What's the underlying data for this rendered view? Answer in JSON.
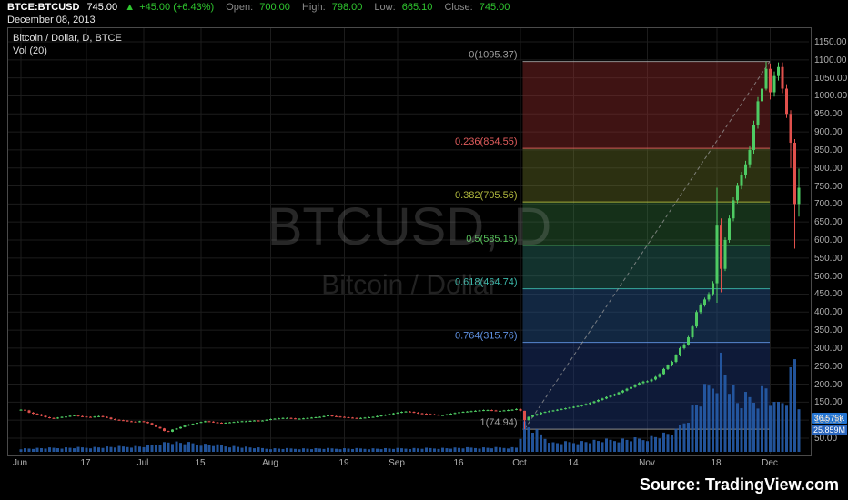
{
  "header": {
    "symbol": "BTCE:BTCUSD",
    "last_price": "745.00",
    "arrow": "▲",
    "change": "+45.00 (+6.43%)",
    "open_label": "Open:",
    "open_value": "700.00",
    "high_label": "High:",
    "high_value": "798.00",
    "low_label": "Low:",
    "low_value": "665.10",
    "close_label": "Close:",
    "close_value": "745.00",
    "date": "December 08, 2013"
  },
  "chart": {
    "legend_title": "Bitcoin / Dollar, D, BTCE",
    "legend_indicator": "Vol (20)",
    "watermark_title": "BTCUSD, D",
    "watermark_subtitle": "Bitcoin / Dollar"
  },
  "price_axis": {
    "ticks": [
      1150,
      1100,
      1050,
      1000,
      950,
      900,
      850,
      800,
      750,
      700,
      650,
      600,
      550,
      500,
      450,
      400,
      350,
      300,
      250,
      200,
      150,
      100,
      50
    ],
    "badges": [
      {
        "text": "36.575K",
        "color": "#2273d0"
      },
      {
        "text": "25.859M",
        "color": "#2b66bd"
      }
    ]
  },
  "time_axis": {
    "ticks": [
      {
        "label": "Jun",
        "index": 0
      },
      {
        "label": "17",
        "index": 16
      },
      {
        "label": "Jul",
        "index": 30
      },
      {
        "label": "15",
        "index": 44
      },
      {
        "label": "Aug",
        "index": 61
      },
      {
        "label": "19",
        "index": 79
      },
      {
        "label": "Sep",
        "index": 92
      },
      {
        "label": "16",
        "index": 107
      },
      {
        "label": "Oct",
        "index": 122
      },
      {
        "label": "14",
        "index": 135
      },
      {
        "label": "Nov",
        "index": 153
      },
      {
        "label": "18",
        "index": 170
      },
      {
        "label": "Dec",
        "index": 183
      }
    ]
  },
  "footer": {
    "prefix": "Source: ",
    "brand": "TradingView.com"
  },
  "colors": {
    "up": "#4ecb63",
    "down": "#e0504c",
    "volume": "rgba(38,92,170,0.9)",
    "grid": "#1c1c1c",
    "trendline": "#999999",
    "watermark": "#9a9a9a"
  },
  "chart_data": {
    "type": "candlestick",
    "symbol": "BTCUSD",
    "interval": "D",
    "exchange": "BTCE",
    "date_range": "2013-06-01 to 2013-12-08",
    "price_range": [
      50,
      1150
    ],
    "closes": [
      129,
      127,
      121,
      118,
      116,
      112,
      108,
      106,
      105,
      107,
      109,
      110,
      112,
      114,
      111,
      110,
      109,
      108,
      110,
      111,
      109,
      107,
      103,
      101,
      100,
      99,
      97,
      96,
      95,
      97,
      95,
      92,
      88,
      81,
      77,
      70,
      68,
      74,
      77,
      81,
      85,
      88,
      90,
      93,
      95,
      97,
      96,
      94,
      93,
      92,
      93,
      94,
      95,
      96,
      97,
      97,
      98,
      99,
      98,
      99,
      101,
      103,
      104,
      105,
      106,
      106,
      105,
      104,
      104,
      105,
      106,
      107,
      108,
      109,
      111,
      113,
      111,
      110,
      109,
      108,
      107,
      106,
      105,
      106,
      107,
      108,
      109,
      111,
      113,
      115,
      117,
      119,
      121,
      123,
      124,
      123,
      121,
      119,
      118,
      117,
      116,
      115,
      114,
      114,
      116,
      118,
      120,
      122,
      123,
      124,
      125,
      126,
      127,
      128,
      128,
      127,
      126,
      126,
      127,
      128,
      129,
      131,
      126,
      100,
      109,
      113,
      117,
      121,
      123,
      125,
      127,
      129,
      131,
      133,
      135,
      137,
      139,
      142,
      145,
      148,
      152,
      156,
      160,
      164,
      168,
      172,
      177,
      182,
      187,
      192,
      198,
      203,
      207,
      208,
      213,
      220,
      228,
      242,
      252,
      262,
      280,
      300,
      310,
      330,
      360,
      400,
      420,
      435,
      450,
      480,
      640,
      520,
      600,
      660,
      710,
      750,
      780,
      810,
      850,
      920,
      985,
      1020,
      1075,
      1010,
      1055,
      1080,
      1020,
      950,
      870,
      700,
      745
    ],
    "ohlc_overrides": {
      "123": [
        126,
        126,
        74.94,
        100
      ],
      "170": [
        480,
        745,
        426,
        640
      ],
      "171": [
        640,
        660,
        455,
        520
      ],
      "182": [
        1020,
        1095.37,
        1015,
        1075
      ],
      "183": [
        1075,
        1090,
        990,
        1010
      ],
      "188": [
        950,
        960,
        800,
        870
      ],
      "189": [
        870,
        880,
        576,
        700
      ],
      "190": [
        700,
        798,
        665.1,
        745
      ]
    },
    "volume_anchors_k": [
      [
        0,
        3
      ],
      [
        30,
        5
      ],
      [
        36,
        9
      ],
      [
        60,
        3
      ],
      [
        91,
        3
      ],
      [
        105,
        3.5
      ],
      [
        121,
        4
      ],
      [
        123,
        25
      ],
      [
        130,
        8
      ],
      [
        152,
        12
      ],
      [
        160,
        18
      ],
      [
        170,
        70
      ],
      [
        171,
        85
      ],
      [
        175,
        45
      ],
      [
        180,
        50
      ],
      [
        182,
        60
      ],
      [
        184,
        40
      ],
      [
        187,
        55
      ],
      [
        189,
        90
      ],
      [
        190,
        36.575
      ]
    ],
    "fib": {
      "from_index": 123,
      "to_index": 182,
      "levels": [
        {
          "ratio": 0,
          "price": 1095.37,
          "label": "0(1095.37)",
          "color": "#9e9e9e"
        },
        {
          "ratio": 0.236,
          "price": 854.55,
          "label": "0.236(854.55)",
          "color": "#e25d5d"
        },
        {
          "ratio": 0.382,
          "price": 705.56,
          "label": "0.382(705.56)",
          "color": "#b3bb3f"
        },
        {
          "ratio": 0.5,
          "price": 585.15,
          "label": "0.5(585.15)",
          "color": "#58c45c"
        },
        {
          "ratio": 0.618,
          "price": 464.74,
          "label": "0.618(464.74)",
          "color": "#3bb8aa"
        },
        {
          "ratio": 0.764,
          "price": 315.76,
          "label": "0.764(315.76)",
          "color": "#6092e2"
        },
        {
          "ratio": 1,
          "price": 74.94,
          "label": "1(74.94)",
          "color": "#9e9e9e"
        }
      ],
      "band_fills": [
        "rgba(150,45,45,0.42)",
        "rgba(115,125,45,0.38)",
        "rgba(55,125,65,0.38)",
        "rgba(42,118,108,0.42)",
        "rgba(38,82,135,0.48)",
        "rgba(28,52,112,0.5)"
      ]
    }
  }
}
